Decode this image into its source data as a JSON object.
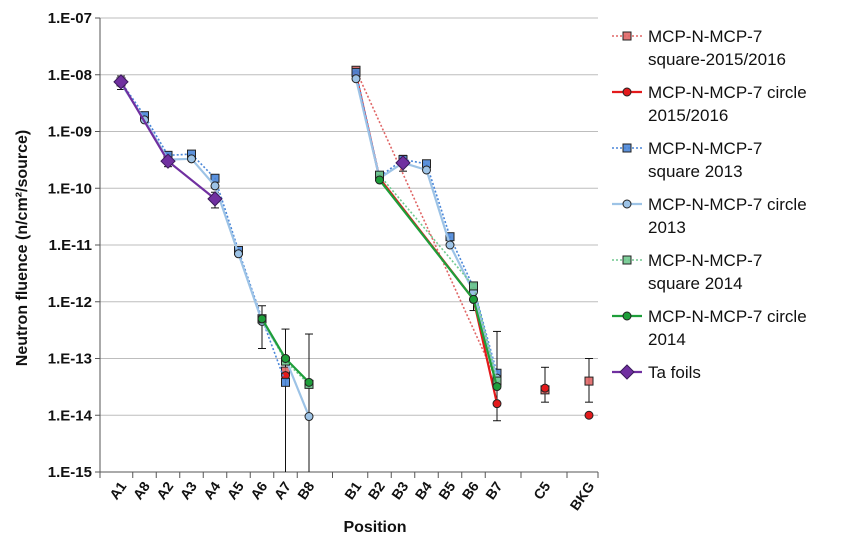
{
  "chart_data": {
    "type": "scatter",
    "xlabel": "Position",
    "ylabel": "Neutron fluence (n/cm²/source)",
    "yscale": "log",
    "ylim": [
      1e-15,
      1e-07
    ],
    "ytick_labels": [
      "1.E-07",
      "1.E-08",
      "1.E-09",
      "1.E-10",
      "1.E-11",
      "1.E-12",
      "1.E-13",
      "1.E-14",
      "1.E-15"
    ],
    "categories": [
      "A1",
      "A8",
      "A2",
      "A3",
      "A4",
      "A5",
      "A6",
      "A7",
      "B8",
      "B1",
      "B2",
      "B3",
      "B4",
      "B5",
      "B6",
      "B7",
      "C5",
      "BKG"
    ],
    "grid": true,
    "legend_position": "right",
    "series": [
      {
        "name": "MCP-N-MCP-7 square-2015/2016",
        "name_lines": [
          "MCP-N-MCP-7",
          "square-2015/2016"
        ],
        "color": "#e06666",
        "line": "dotted",
        "marker": "square",
        "points": [
          [
            "A7",
            6e-14
          ],
          [
            "B1",
            1.2e-08
          ],
          [
            "B7",
            4e-14
          ],
          [
            "C5",
            2.8e-14
          ],
          [
            "BKG",
            4e-14
          ]
        ]
      },
      {
        "name": "MCP-N-MCP-7 circle 2015/2016",
        "name_lines": [
          "MCP-N-MCP-7 circle",
          "2015/2016"
        ],
        "color": "#e31a1c",
        "line": "solid",
        "marker": "circle",
        "points": [
          [
            "A7",
            5e-14
          ],
          [
            "B1",
            1e-08
          ],
          [
            "B2",
            1.5e-10
          ],
          [
            "B6",
            1.1e-12
          ],
          [
            "B7",
            1.6e-14
          ],
          [
            "C5",
            3e-14
          ],
          [
            "BKG",
            1e-14
          ]
        ]
      },
      {
        "name": "MCP-N-MCP-7 square 2013",
        "name_lines": [
          "MCP-N-MCP-7",
          "square 2013"
        ],
        "color": "#4a86d8",
        "line": "dotted",
        "marker": "square",
        "points": [
          [
            "A1",
            7.5e-09
          ],
          [
            "A8",
            1.9e-09
          ],
          [
            "A2",
            3.8e-10
          ],
          [
            "A3",
            4e-10
          ],
          [
            "A4",
            1.5e-10
          ],
          [
            "A5",
            8e-12
          ],
          [
            "A6",
            5e-13
          ],
          [
            "A7",
            3.8e-14
          ],
          [
            "B1",
            1.1e-08
          ],
          [
            "B2",
            1.6e-10
          ],
          [
            "B3",
            3.2e-10
          ],
          [
            "B4",
            2.7e-10
          ],
          [
            "B5",
            1.4e-11
          ],
          [
            "B6",
            1.8e-12
          ],
          [
            "B7",
            5.5e-14
          ]
        ]
      },
      {
        "name": "MCP-N-MCP-7 circle 2013",
        "name_lines": [
          "MCP-N-MCP-7 circle",
          "2013"
        ],
        "color": "#9dc3e6",
        "line": "solid",
        "marker": "circle",
        "points": [
          [
            "A1",
            7e-09
          ],
          [
            "A8",
            1.6e-09
          ],
          [
            "A2",
            3.2e-10
          ],
          [
            "A3",
            3.3e-10
          ],
          [
            "A4",
            1.1e-10
          ],
          [
            "A5",
            7e-12
          ],
          [
            "A6",
            4.5e-13
          ],
          [
            "A7",
            1e-13
          ],
          [
            "B8",
            9.5e-15
          ],
          [
            "B1",
            8.5e-09
          ],
          [
            "B2",
            1.5e-10
          ],
          [
            "B3",
            2.8e-10
          ],
          [
            "B4",
            2.1e-10
          ],
          [
            "B5",
            1e-11
          ],
          [
            "B6",
            1.5e-12
          ],
          [
            "B7",
            4.5e-14
          ]
        ]
      },
      {
        "name": "MCP-N-MCP-7 square 2014",
        "name_lines": [
          "MCP-N-MCP-7",
          "square 2014"
        ],
        "color": "#70c98f",
        "line": "dotted",
        "marker": "square",
        "points": [
          [
            "A6",
            5e-13
          ],
          [
            "A7",
            9e-14
          ],
          [
            "B8",
            3.5e-14
          ],
          [
            "B2",
            1.7e-10
          ],
          [
            "B6",
            1.9e-12
          ],
          [
            "B7",
            4e-14
          ]
        ]
      },
      {
        "name": "MCP-N-MCP-7 circle 2014",
        "name_lines": [
          "MCP-N-MCP-7 circle",
          "2014"
        ],
        "color": "#1e9e3a",
        "line": "solid",
        "marker": "circle",
        "points": [
          [
            "A6",
            5e-13
          ],
          [
            "A7",
            1e-13
          ],
          [
            "B8",
            3.8e-14
          ],
          [
            "B2",
            1.4e-10
          ],
          [
            "B6",
            1.1e-12
          ],
          [
            "B7",
            3.2e-14
          ]
        ]
      },
      {
        "name": "Ta foils",
        "name_lines": [
          "Ta foils"
        ],
        "color": "#7030a0",
        "line": "solid",
        "marker": "diamond",
        "points": [
          [
            "A1",
            7.5e-09
          ],
          [
            "A2",
            3e-10
          ],
          [
            "A4",
            6.5e-11
          ],
          [
            "B3",
            2.8e-10
          ]
        ]
      }
    ],
    "error_bars": [
      {
        "x": "A1",
        "low": 5.5e-09,
        "high": 9.5e-09
      },
      {
        "x": "A2",
        "low": 2.4e-10,
        "high": 4e-10
      },
      {
        "x": "A4",
        "low": 4.5e-11,
        "high": 8.5e-11
      },
      {
        "x": "B3",
        "low": 2e-10,
        "high": 3.8e-10
      },
      {
        "x": "A6",
        "low": 1.5e-13,
        "high": 8.5e-13
      },
      {
        "x": "A7",
        "low": 1e-15,
        "high": 3.3e-13
      },
      {
        "x": "B8",
        "low": 1e-15,
        "high": 2.7e-13
      },
      {
        "x": "B6",
        "low": 7e-13,
        "high": 2.2e-12
      },
      {
        "x": "B7",
        "low": 8e-15,
        "high": 3e-13
      },
      {
        "x": "C5",
        "low": 1.7e-14,
        "high": 7e-14
      },
      {
        "x": "BKG",
        "low": 1.7e-14,
        "high": 1e-13
      }
    ]
  }
}
